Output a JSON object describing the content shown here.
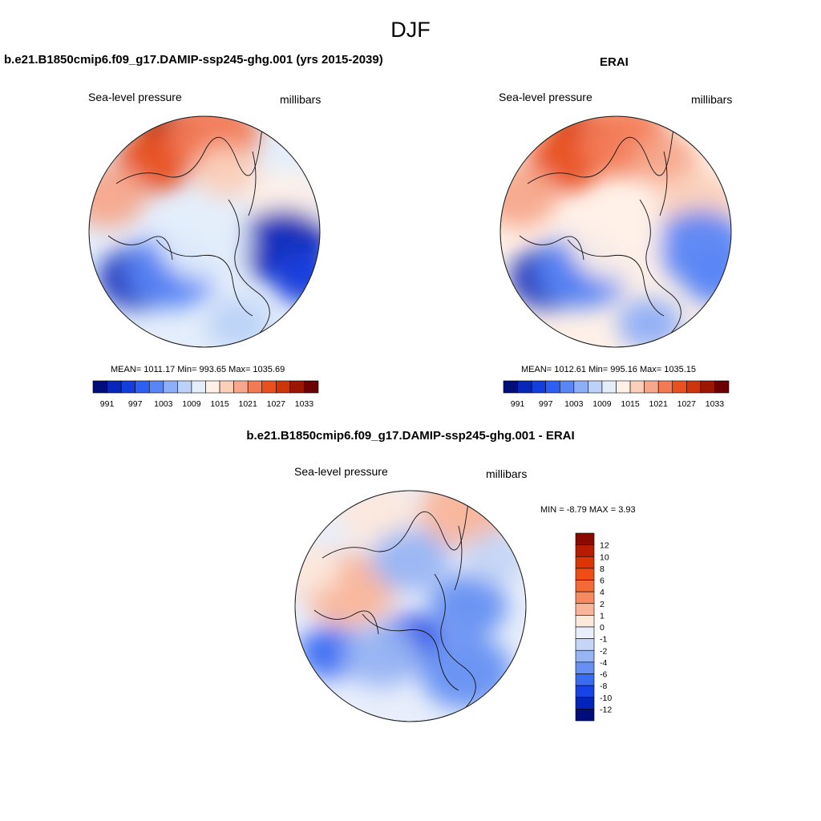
{
  "figure_title": "DJF",
  "palette": {
    "blue_dark": "#001a9e",
    "blue_mid": "#1f50e0",
    "blue_light": "#b9d0f2",
    "white": "#fdf2ea",
    "red_light": "#f8b29a",
    "red_mid": "#f05a2c",
    "red_dark": "#8a0a00"
  },
  "chart_data": [
    {
      "type": "heatmap",
      "title": "b.e21.B1850cmip6.f09_g17.DAMIP-ssp245-ghg.001 (yrs 2015-2039)",
      "variable_label": "Sea-level pressure",
      "units_label": "millibars",
      "stats_text": "MEAN= 1011.17  Min= 993.65  Max= 1035.69",
      "stats": {
        "mean": 1011.17,
        "min": 993.65,
        "max": 1035.69
      },
      "colorbar": {
        "orientation": "horizontal",
        "levels": [
          991,
          994,
          997,
          1000,
          1003,
          1006,
          1009,
          1012,
          1015,
          1018,
          1021,
          1024,
          1027,
          1030,
          1033
        ],
        "tick_labels": [
          "991",
          "997",
          "1003",
          "1009",
          "1015",
          "1021",
          "1027",
          "1033"
        ],
        "colors": [
          "#000e7a",
          "#0727b8",
          "#143ddd",
          "#2d5ff2",
          "#5a85f5",
          "#8eaef7",
          "#bcd3f7",
          "#e4eefb",
          "#fff1e8",
          "#fbd0bb",
          "#f7a88c",
          "#f27a55",
          "#e8501f",
          "#cc3608",
          "#9c1600",
          "#6a0000"
        ]
      },
      "field_blobs": [
        {
          "lon": 200,
          "colat_frac": 0.92,
          "value": 1033
        },
        {
          "lon": 215,
          "colat_frac": 0.75,
          "value": 1027
        },
        {
          "lon": 175,
          "colat_frac": 0.85,
          "value": 1024
        },
        {
          "lon": 160,
          "colat_frac": 0.55,
          "value": 1018
        },
        {
          "lon": 110,
          "colat_frac": 0.75,
          "value": 1015
        },
        {
          "lon": 80,
          "colat_frac": 0.7,
          "value": 994
        },
        {
          "lon": 65,
          "colat_frac": 0.95,
          "value": 997
        },
        {
          "lon": 305,
          "colat_frac": 0.7,
          "value": 994
        },
        {
          "lon": 320,
          "colat_frac": 0.45,
          "value": 1003
        },
        {
          "lon": 20,
          "colat_frac": 0.85,
          "value": 1009
        },
        {
          "lon": 250,
          "colat_frac": 0.9,
          "value": 1021
        },
        {
          "lon": 0,
          "colat_frac": 0.1,
          "value": 1012
        }
      ]
    },
    {
      "type": "heatmap",
      "title": "ERAI",
      "variable_label": "Sea-level pressure",
      "units_label": "millibars",
      "stats_text": "MEAN= 1012.61  Min= 995.16  Max= 1035.15",
      "stats": {
        "mean": 1012.61,
        "min": 995.16,
        "max": 1035.15
      },
      "colorbar": {
        "orientation": "horizontal",
        "levels": [
          991,
          994,
          997,
          1000,
          1003,
          1006,
          1009,
          1012,
          1015,
          1018,
          1021,
          1024,
          1027,
          1030,
          1033
        ],
        "tick_labels": [
          "991",
          "997",
          "1003",
          "1009",
          "1015",
          "1021",
          "1027",
          "1033"
        ],
        "colors": [
          "#000e7a",
          "#0727b8",
          "#143ddd",
          "#2d5ff2",
          "#5a85f5",
          "#8eaef7",
          "#bcd3f7",
          "#e4eefb",
          "#fff1e8",
          "#fbd0bb",
          "#f7a88c",
          "#f27a55",
          "#e8501f",
          "#cc3608",
          "#9c1600",
          "#6a0000"
        ]
      },
      "field_blobs": [
        {
          "lon": 200,
          "colat_frac": 0.92,
          "value": 1030
        },
        {
          "lon": 215,
          "colat_frac": 0.75,
          "value": 1027
        },
        {
          "lon": 175,
          "colat_frac": 0.8,
          "value": 1024
        },
        {
          "lon": 145,
          "colat_frac": 0.75,
          "value": 1021
        },
        {
          "lon": 110,
          "colat_frac": 0.75,
          "value": 1018
        },
        {
          "lon": 80,
          "colat_frac": 0.75,
          "value": 1003
        },
        {
          "lon": 65,
          "colat_frac": 0.95,
          "value": 1003
        },
        {
          "lon": 305,
          "colat_frac": 0.7,
          "value": 994
        },
        {
          "lon": 320,
          "colat_frac": 0.45,
          "value": 1003
        },
        {
          "lon": 20,
          "colat_frac": 0.85,
          "value": 1006
        },
        {
          "lon": 250,
          "colat_frac": 0.9,
          "value": 1021
        },
        {
          "lon": 0,
          "colat_frac": 0.1,
          "value": 1015
        }
      ]
    },
    {
      "type": "heatmap",
      "title": "b.e21.B1850cmip6.f09_g17.DAMIP-ssp245-ghg.001 - ERAI",
      "variable_label": "Sea-level pressure",
      "units_label": "millibars",
      "stats_text": "MIN =  -8.79 MAX =   3.93",
      "stats": {
        "min": -8.79,
        "max": 3.93
      },
      "colorbar": {
        "orientation": "vertical",
        "levels": [
          12,
          10,
          8,
          6,
          4,
          2,
          1,
          0,
          -1,
          -2,
          -4,
          -6,
          -8,
          -10,
          -12
        ],
        "tick_labels": [
          "12",
          "10",
          "8",
          "6",
          "4",
          "2",
          "1",
          "0",
          "-1",
          "-2",
          "-4",
          "-6",
          "-8",
          "-10",
          "-12"
        ],
        "colors": [
          "#8a0a00",
          "#b81c00",
          "#dd3405",
          "#f04d15",
          "#f46a36",
          "#f78a5e",
          "#f9b59a",
          "#fde8dc",
          "#e8eefb",
          "#c4d5f5",
          "#98b5f3",
          "#6690f2",
          "#3a6cf2",
          "#1443e6",
          "#0224ba",
          "#000e7a"
        ]
      },
      "field_blobs": [
        {
          "lon": 0,
          "colat_frac": 0.3,
          "value": -8
        },
        {
          "lon": 90,
          "colat_frac": 0.5,
          "value": -4
        },
        {
          "lon": 40,
          "colat_frac": 0.75,
          "value": -4
        },
        {
          "lon": 300,
          "colat_frac": 0.8,
          "value": -6
        },
        {
          "lon": 330,
          "colat_frac": 0.5,
          "value": -2
        },
        {
          "lon": 255,
          "colat_frac": 0.55,
          "value": 2
        },
        {
          "lon": 250,
          "colat_frac": 0.95,
          "value": 1
        },
        {
          "lon": 200,
          "colat_frac": 0.85,
          "value": 1
        },
        {
          "lon": 150,
          "colat_frac": 0.95,
          "value": 2
        },
        {
          "lon": 120,
          "colat_frac": 0.85,
          "value": -1
        },
        {
          "lon": 180,
          "colat_frac": 0.4,
          "value": -2
        }
      ]
    }
  ]
}
